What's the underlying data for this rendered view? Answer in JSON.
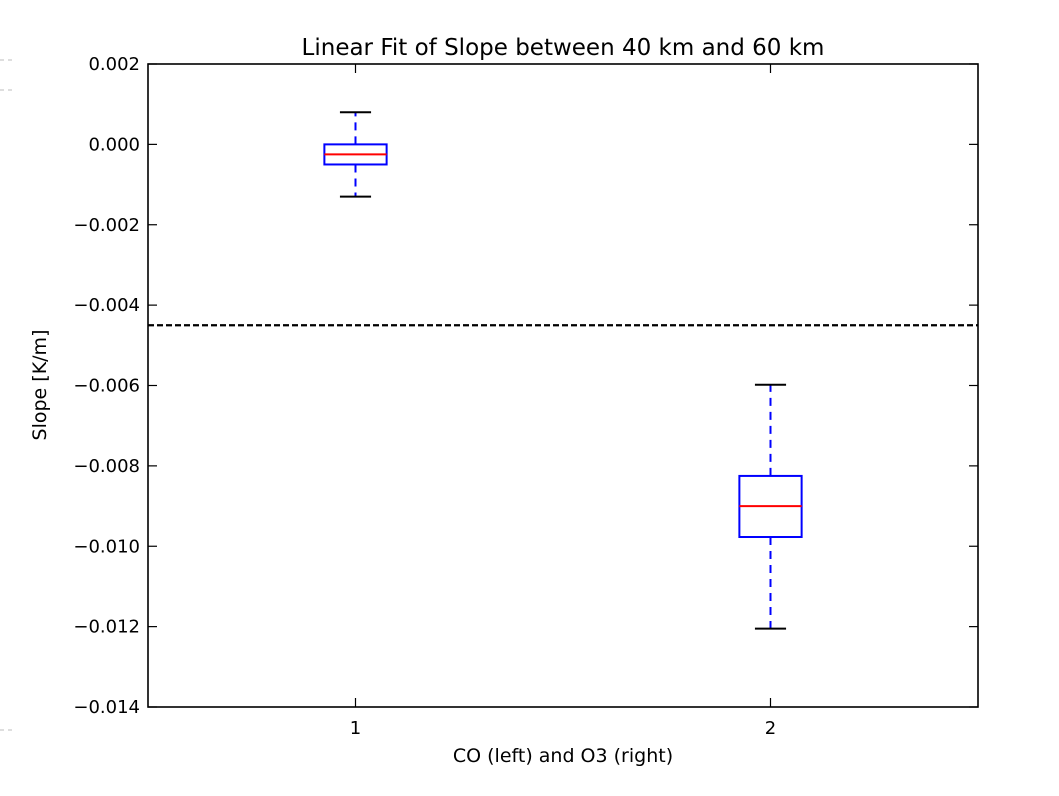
{
  "chart_data": {
    "type": "boxplot",
    "title": "Linear Fit of Slope between 40 km and 60 km",
    "xlabel": "CO (left) and O3 (right)",
    "ylabel": "Slope [K/m]",
    "ylim": [
      -0.014,
      0.002
    ],
    "xlim": [
      0.5,
      2.5
    ],
    "yticks": [
      0.002,
      0.0,
      -0.002,
      -0.004,
      -0.006,
      -0.008,
      -0.01,
      -0.012,
      -0.014
    ],
    "ytick_labels": [
      "0.002",
      "0.000",
      "−0.002",
      "−0.004",
      "−0.006",
      "−0.008",
      "−0.010",
      "−0.012",
      "−0.014"
    ],
    "xticks": [
      1,
      2
    ],
    "xtick_labels": [
      "1",
      "2"
    ],
    "boxes": [
      {
        "position": 1,
        "whisker_low": -0.0013,
        "q1": -0.0005,
        "median": -0.00025,
        "q3": 0.0,
        "whisker_high": 0.0008
      },
      {
        "position": 2,
        "whisker_low": -0.01205,
        "q1": -0.00977,
        "median": -0.009,
        "q3": -0.00825,
        "whisker_high": -0.00598
      }
    ],
    "reference_line": {
      "y": -0.0045,
      "style": "dashed"
    },
    "grid": false,
    "colors": {
      "box": "#0000ff",
      "median": "#ff0000",
      "cap": "#000000",
      "reference_line": "#000000"
    }
  }
}
